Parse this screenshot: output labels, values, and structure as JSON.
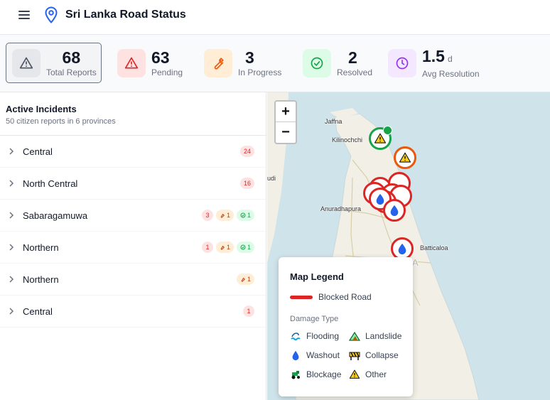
{
  "header": {
    "title": "Sri Lanka Road Status"
  },
  "stats": [
    {
      "value": "68",
      "unit": "",
      "label": "Total Reports"
    },
    {
      "value": "63",
      "unit": "",
      "label": "Pending"
    },
    {
      "value": "3",
      "unit": "",
      "label": "In Progress"
    },
    {
      "value": "2",
      "unit": "",
      "label": "Resolved"
    },
    {
      "value": "1.5",
      "unit": "d",
      "label": "Avg Resolution"
    }
  ],
  "sidebar": {
    "title": "Active Incidents",
    "subtitle": "50 citizen reports in 6 provinces",
    "rows": [
      {
        "label": "Central",
        "pending": "24"
      },
      {
        "label": "North Central",
        "pending": "16"
      },
      {
        "label": "Sabaragamuwa",
        "pending": "3",
        "in_progress": "1",
        "resolved": "1"
      },
      {
        "label": "Northern",
        "pending": "1",
        "in_progress": "1",
        "resolved": "1"
      },
      {
        "label": "Northern",
        "in_progress": "1"
      },
      {
        "label": "Central",
        "pending": "1"
      }
    ]
  },
  "map": {
    "zoom_in": "+",
    "zoom_out": "−",
    "cities": [
      "Jaffna",
      "Kilinochchi",
      "Anuradhapura",
      "Batticaloa",
      "udi",
      "A"
    ]
  },
  "legend": {
    "title": "Map Legend",
    "road_label": "Blocked Road",
    "damage_title": "Damage Type",
    "types": [
      "Flooding",
      "Landslide",
      "Washout",
      "Collapse",
      "Blockage",
      "Other"
    ]
  },
  "colors": {
    "pending": "#dc2626",
    "in_progress": "#ea580c",
    "resolved": "#16a34a",
    "avg": "#9333ea"
  }
}
